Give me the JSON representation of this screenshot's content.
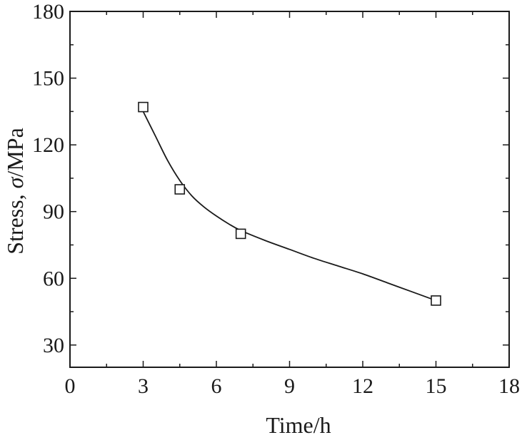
{
  "chart_data": {
    "type": "scatter",
    "title": "",
    "xlabel": "Time/h",
    "ylabel_prefix": "Stress, ",
    "ylabel_symbol": "σ",
    "ylabel_suffix": "/MPa",
    "xlim": [
      0,
      18
    ],
    "ylim": [
      20,
      180
    ],
    "xticks": [
      0,
      3,
      6,
      9,
      12,
      15,
      18
    ],
    "yticks": [
      30,
      60,
      90,
      120,
      150,
      180
    ],
    "grid": false,
    "legend": "none",
    "series": [
      {
        "marker": "open-square",
        "x": [
          3,
          4.5,
          7,
          15
        ],
        "y": [
          137,
          100,
          80,
          50
        ]
      }
    ],
    "fit_curve": {
      "x": [
        3,
        3.5,
        4,
        4.5,
        5,
        5.5,
        6,
        6.5,
        7,
        8,
        9,
        10,
        11,
        12,
        13,
        14,
        15
      ],
      "y": [
        135,
        124,
        113,
        104,
        97,
        92,
        88,
        84.5,
        81.5,
        77,
        73,
        69,
        65.5,
        62,
        58,
        54,
        50
      ]
    },
    "colors": {
      "line": "#1a1a1a",
      "marker_fill": "#ffffff",
      "axis": "#1a1a1a"
    }
  }
}
